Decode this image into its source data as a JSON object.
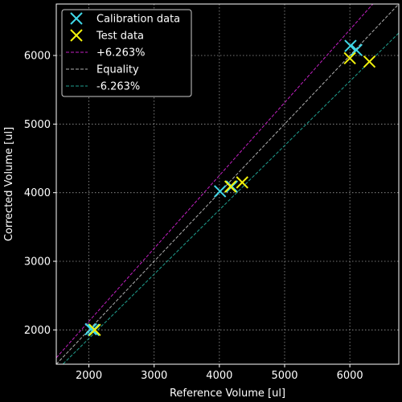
{
  "chart_data": {
    "type": "scatter",
    "xlabel": "Reference Volume [ul]",
    "ylabel": "Corrected Volume [ul]",
    "xlim": [
      1500,
      6750
    ],
    "ylim": [
      1500,
      6750
    ],
    "xticks": [
      2000,
      3000,
      4000,
      5000,
      6000
    ],
    "yticks": [
      2000,
      3000,
      4000,
      5000,
      6000
    ],
    "xtick_labels": [
      "2000",
      "3000",
      "4000",
      "5000",
      "6000"
    ],
    "ytick_labels": [
      "2000",
      "3000",
      "4000",
      "5000",
      "6000"
    ],
    "grid": true,
    "legend_position": "top-left",
    "series": [
      {
        "name": "Calibration data",
        "kind": "marker",
        "marker": "x",
        "color": "#40d8e8",
        "points": [
          {
            "x": 2030,
            "y": 2010
          },
          {
            "x": 2070,
            "y": 2000
          },
          {
            "x": 4010,
            "y": 4020
          },
          {
            "x": 4190,
            "y": 4090
          },
          {
            "x": 6010,
            "y": 6140
          },
          {
            "x": 6100,
            "y": 6080
          }
        ]
      },
      {
        "name": "Test data",
        "kind": "marker",
        "marker": "x",
        "color": "#f2f20c",
        "points": [
          {
            "x": 2090,
            "y": 2000
          },
          {
            "x": 4170,
            "y": 4090
          },
          {
            "x": 4350,
            "y": 4150
          },
          {
            "x": 6000,
            "y": 5960
          },
          {
            "x": 6300,
            "y": 5910
          }
        ]
      },
      {
        "name": "+6.263%",
        "kind": "line",
        "slope": 1.06263,
        "dash": "dashed",
        "color": "#c020c0"
      },
      {
        "name": "Equality",
        "kind": "line",
        "slope": 1.0,
        "dash": "dashed",
        "color": "#b0b0b0"
      },
      {
        "name": "-6.263%",
        "kind": "line",
        "slope": 0.93737,
        "dash": "dashed",
        "color": "#20a090"
      }
    ]
  },
  "colors": {
    "background": "#000000",
    "axis": "#ffffff",
    "grid": "#9a9a9a"
  }
}
